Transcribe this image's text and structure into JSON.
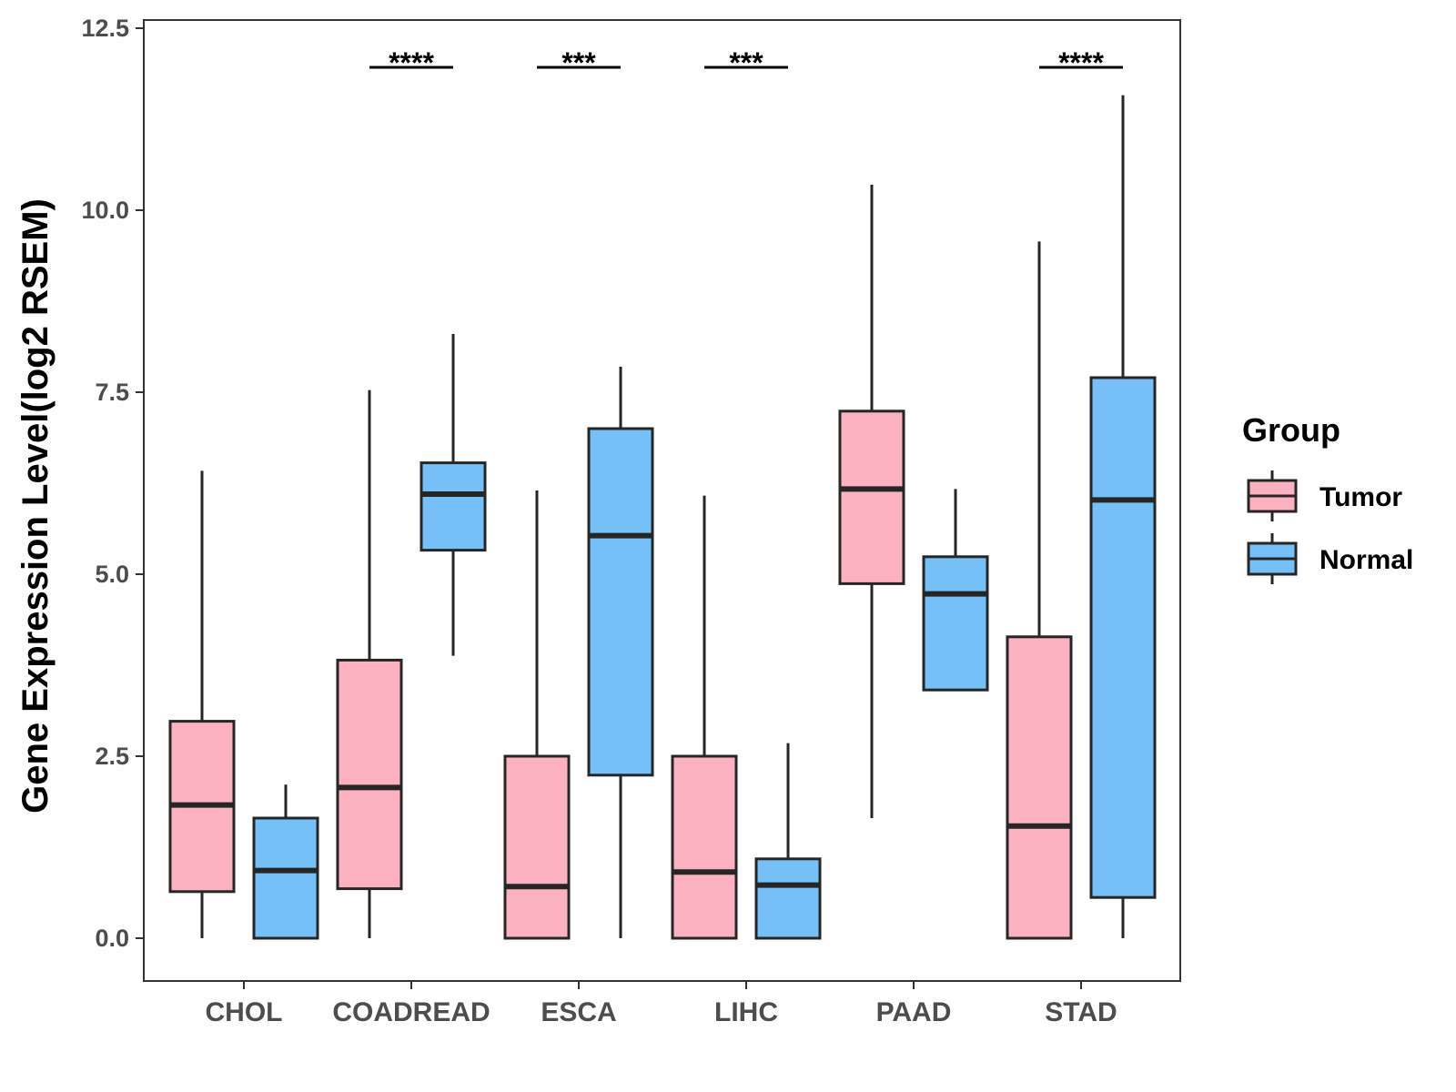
{
  "chart_data": {
    "type": "boxplot",
    "title": "",
    "xlabel": "",
    "ylabel": "Gene Expression Level(log2 RSEM)",
    "ylim": [
      -0.7,
      12.7
    ],
    "yticks": [
      "0.0",
      "2.5",
      "5.0",
      "7.5",
      "10.0",
      "12.5"
    ],
    "ytick_values": [
      0,
      2.5,
      5,
      7.5,
      10,
      12.5
    ],
    "categories": [
      "CHOL",
      "COADREAD",
      "ESCA",
      "LIHC",
      "PAAD",
      "STAD"
    ],
    "legend_title": "Group",
    "legend_position": "right",
    "series": [
      {
        "name": "Tumor",
        "color": "#FBB1C0",
        "boxes": [
          {
            "min": 0.0,
            "q1": 0.64,
            "median": 1.83,
            "q3": 2.98,
            "max": 6.42
          },
          {
            "min": 0.0,
            "q1": 0.68,
            "median": 2.07,
            "q3": 3.82,
            "max": 7.53
          },
          {
            "min": 0.0,
            "q1": 0.0,
            "median": 0.71,
            "q3": 2.5,
            "max": 6.15
          },
          {
            "min": 0.0,
            "q1": 0.0,
            "median": 0.91,
            "q3": 2.5,
            "max": 6.08
          },
          {
            "min": 1.65,
            "q1": 4.87,
            "median": 6.17,
            "q3": 7.24,
            "max": 10.35
          },
          {
            "min": 0.0,
            "q1": 0.0,
            "median": 1.54,
            "q3": 4.14,
            "max": 9.57
          }
        ]
      },
      {
        "name": "Normal",
        "color": "#74C0F7",
        "boxes": [
          {
            "min": 0.0,
            "q1": 0.0,
            "median": 0.93,
            "q3": 1.65,
            "max": 2.11
          },
          {
            "min": 3.88,
            "q1": 5.33,
            "median": 6.1,
            "q3": 6.53,
            "max": 8.3
          },
          {
            "min": 0.0,
            "q1": 2.24,
            "median": 5.53,
            "q3": 7.0,
            "max": 7.85
          },
          {
            "min": 0.0,
            "q1": 0.0,
            "median": 0.73,
            "q3": 1.09,
            "max": 2.68
          },
          {
            "min": 3.41,
            "q1": 3.41,
            "median": 4.73,
            "q3": 5.24,
            "max": 6.17
          },
          {
            "min": 0.0,
            "q1": 0.56,
            "median": 6.02,
            "q3": 7.7,
            "max": 11.58
          }
        ]
      }
    ],
    "significance": [
      {
        "category": "COADREAD",
        "label": "****"
      },
      {
        "category": "ESCA",
        "label": "***"
      },
      {
        "category": "LIHC",
        "label": "***"
      },
      {
        "category": "STAD",
        "label": "****"
      }
    ]
  }
}
